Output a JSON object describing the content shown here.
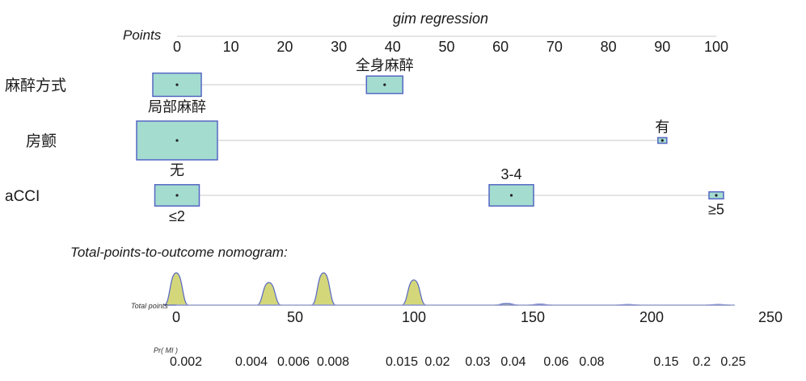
{
  "chart_data": {
    "type": "nomogram",
    "title": "gim regression",
    "points_axis": {
      "label": "Points",
      "range": [
        0,
        100
      ],
      "ticks": [
        "0",
        "10",
        "20",
        "30",
        "40",
        "50",
        "60",
        "70",
        "80",
        "90",
        "100"
      ]
    },
    "variables": [
      {
        "name": "麻醉方式",
        "levels": [
          {
            "label": "局部麻醉",
            "points": 0,
            "proportion": 0.6,
            "label_side": "below"
          },
          {
            "label": "全身麻醉",
            "points": 38.5,
            "proportion": 0.45,
            "label_side": "above"
          }
        ]
      },
      {
        "name": "房颤",
        "levels": [
          {
            "label": "无",
            "points": 0,
            "proportion": 1.0,
            "label_side": "below"
          },
          {
            "label": "有",
            "points": 90,
            "proportion": 0.08,
            "label_side": "above"
          }
        ]
      },
      {
        "name": "aCCI",
        "levels": [
          {
            "label": "≤2",
            "points": 0,
            "proportion": 0.55,
            "label_side": "below"
          },
          {
            "label": "3-4",
            "points": 62,
            "proportion": 0.55,
            "label_side": "above"
          },
          {
            "label": "≥5",
            "points": 100,
            "proportion": 0.18,
            "label_side": "below"
          }
        ]
      }
    ],
    "total_points_axis": {
      "heading": "Total-points-to-outcome nomogram:",
      "label": "Total points",
      "range": [
        0,
        250
      ],
      "ticks": [
        "0",
        "50",
        "100",
        "150",
        "200",
        "250"
      ],
      "distribution": [
        {
          "x": 0,
          "height": 1.0
        },
        {
          "x": 39,
          "height": 0.7
        },
        {
          "x": 62,
          "height": 1.0
        },
        {
          "x": 100,
          "height": 0.78
        },
        {
          "x": 139,
          "height": 0.05
        },
        {
          "x": 153,
          "height": 0.03
        },
        {
          "x": 190,
          "height": 0.02
        },
        {
          "x": 228,
          "height": 0.02
        }
      ]
    },
    "probability_axis": {
      "label": "Pr( MI )",
      "ticks": [
        "0.002",
        "0.004",
        "0.006",
        "0.008",
        "0.015",
        "0.02",
        "0.03",
        "0.04",
        "0.06",
        "0.08",
        "0.15",
        "0.2",
        "0.25"
      ]
    },
    "colors": {
      "box_fill": "#a4dcd0",
      "box_stroke": "#5567c4",
      "density_fill": "#d4d67a",
      "density_stroke": "#5567c4",
      "axis": "#c8c8c8",
      "baseline": "#9aa0cc"
    }
  }
}
